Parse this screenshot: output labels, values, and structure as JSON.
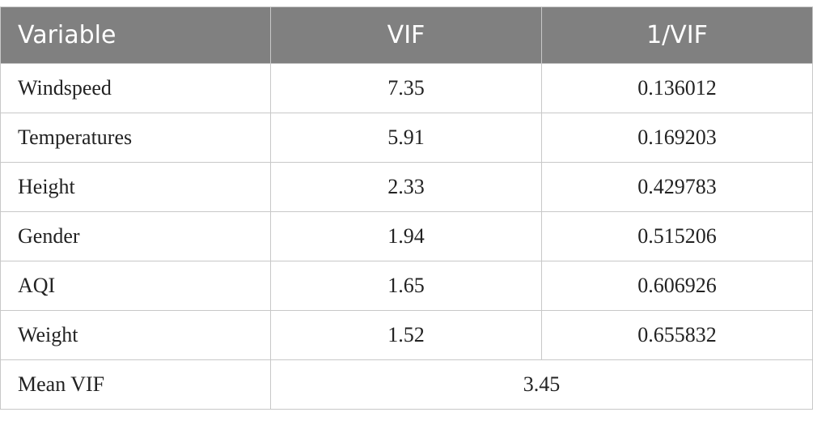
{
  "table": {
    "headers": [
      "Variable",
      "VIF",
      "1/VIF"
    ],
    "rows": [
      {
        "variable": "Windspeed",
        "vif": "7.35",
        "inv_vif": "0.136012"
      },
      {
        "variable": "Temperatures",
        "vif": "5.91",
        "inv_vif": "0.169203"
      },
      {
        "variable": "Height",
        "vif": "2.33",
        "inv_vif": "0.429783"
      },
      {
        "variable": "Gender",
        "vif": "1.94",
        "inv_vif": "0.515206"
      },
      {
        "variable": "AQI",
        "vif": "1.65",
        "inv_vif": "0.606926"
      },
      {
        "variable": "Weight",
        "vif": "1.52",
        "inv_vif": "0.655832"
      }
    ],
    "footer": {
      "label": "Mean VIF",
      "value": "3.45"
    }
  },
  "colors": {
    "header_background": "#808080",
    "header_text": "#ffffff",
    "grid_line": "#c8c8c8"
  }
}
